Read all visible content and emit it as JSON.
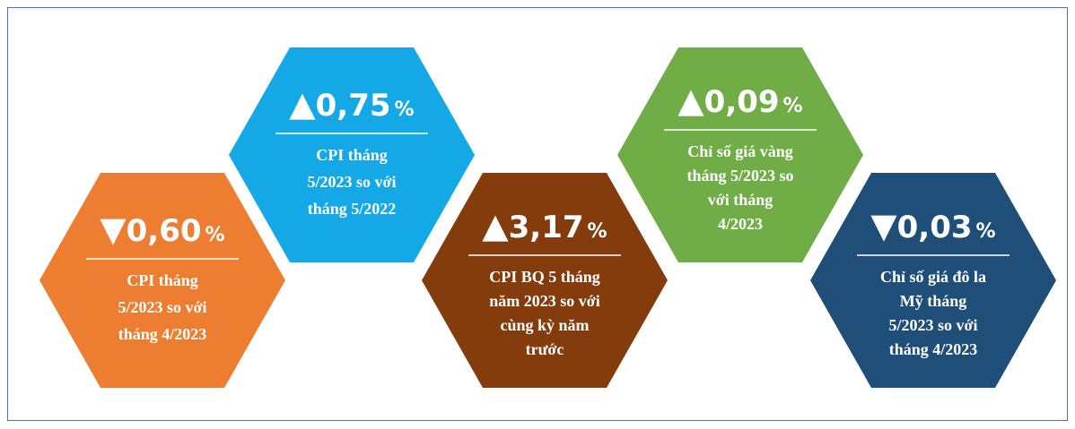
{
  "items": [
    {
      "arrow": "▼",
      "value": "0,60",
      "unit": "%",
      "label": [
        "CPI tháng",
        "5/2023 so với",
        "tháng 4/2023"
      ],
      "color": "#ed7d31"
    },
    {
      "arrow": "▲",
      "value": "0,75",
      "unit": "%",
      "label": [
        "CPI tháng",
        "5/2023 so với",
        "tháng 5/2022"
      ],
      "color": "#14a9e6"
    },
    {
      "arrow": "▲",
      "value": "3,17",
      "unit": "%",
      "label": [
        "CPI BQ 5 tháng",
        "năm 2023 so với",
        "cùng kỳ năm",
        "trước"
      ],
      "color": "#843c0c"
    },
    {
      "arrow": "▲",
      "value": "0,09",
      "unit": "%",
      "label": [
        "Chỉ số giá vàng",
        "tháng 5/2023 so",
        "với  tháng",
        "4/2023"
      ],
      "color": "#70ad47"
    },
    {
      "arrow": "▼",
      "value": "0,03",
      "unit": "%",
      "label": [
        "Chỉ số giá đô la",
        "Mỹ  tháng",
        "5/2023 so với",
        "tháng 4/2023"
      ],
      "color": "#1f4e79"
    }
  ]
}
